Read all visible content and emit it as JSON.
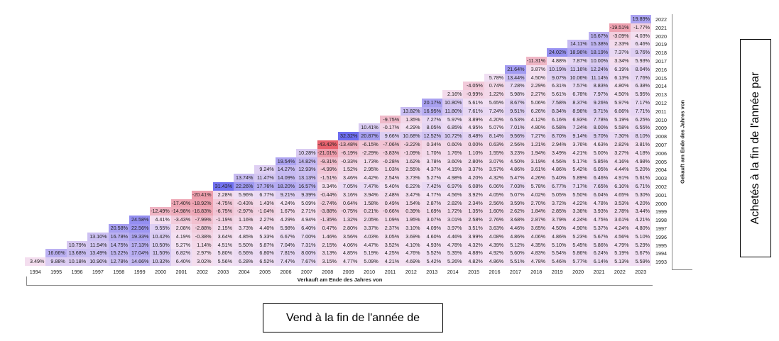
{
  "chart_data": {
    "type": "heatmap",
    "xlabel": "Verkauft am Ende des Jahres von",
    "ylabel": "Gekauft am Ende des Jahres von",
    "unit": "%",
    "columns": [
      1994,
      1995,
      1996,
      1997,
      1998,
      1999,
      2000,
      2001,
      2002,
      2003,
      2004,
      2005,
      2006,
      2007,
      2008,
      2009,
      2010,
      2011,
      2012,
      2013,
      2014,
      2015,
      2016,
      2017,
      2018,
      2019,
      2020,
      2021,
      2022,
      2023
    ],
    "color_scale": {
      "negative": "#e8626e",
      "mid": "#f4e2f3",
      "positive": "#6e6ef0"
    },
    "rows": [
      {
        "year": 2022,
        "values": [
          19.89
        ]
      },
      {
        "year": 2021,
        "values": [
          -19.51,
          -1.77
        ]
      },
      {
        "year": 2020,
        "values": [
          16.67,
          -3.09,
          4.03
        ]
      },
      {
        "year": 2019,
        "values": [
          14.11,
          15.38,
          2.33,
          6.46
        ]
      },
      {
        "year": 2018,
        "values": [
          24.02,
          18.96,
          18.19,
          7.37,
          9.76
        ]
      },
      {
        "year": 2017,
        "values": [
          -11.31,
          4.88,
          7.87,
          10.0,
          3.34,
          5.93
        ]
      },
      {
        "year": 2016,
        "values": [
          21.64,
          3.87,
          10.19,
          11.16,
          12.24,
          6.19,
          8.04
        ]
      },
      {
        "year": 2015,
        "values": [
          5.78,
          13.44,
          4.5,
          9.07,
          10.06,
          11.14,
          6.13,
          7.76
        ]
      },
      {
        "year": 2014,
        "values": [
          -4.05,
          0.74,
          7.28,
          2.29,
          6.31,
          7.57,
          8.83,
          4.8,
          6.38
        ]
      },
      {
        "year": 2013,
        "values": [
          2.16,
          -0.99,
          1.22,
          5.98,
          2.27,
          5.61,
          6.78,
          7.97,
          4.5,
          5.95
        ]
      },
      {
        "year": 2012,
        "values": [
          20.17,
          10.8,
          5.61,
          5.65,
          8.67,
          5.06,
          7.58,
          8.37,
          9.26,
          5.97,
          7.17
        ]
      },
      {
        "year": 2011,
        "values": [
          13.82,
          16.95,
          11.8,
          7.61,
          7.24,
          9.51,
          6.26,
          8.34,
          8.96,
          9.71,
          6.66,
          7.71
        ]
      },
      {
        "year": 2010,
        "values": [
          -9.75,
          1.35,
          7.27,
          5.97,
          3.89,
          4.2,
          6.53,
          4.12,
          6.16,
          6.93,
          7.78,
          5.19,
          6.25
        ]
      },
      {
        "year": 2009,
        "values": [
          10.41,
          -0.17,
          4.29,
          8.05,
          6.85,
          4.95,
          5.07,
          7.01,
          4.8,
          6.58,
          7.24,
          8.0,
          5.58,
          6.55
        ]
      },
      {
        "year": 2008,
        "values": [
          32.32,
          20.87,
          9.66,
          10.68,
          12.52,
          10.72,
          8.48,
          8.14,
          9.56,
          7.27,
          8.7,
          9.14,
          9.7,
          7.3,
          8.1
        ]
      },
      {
        "year": 2007,
        "values": [
          -43.42,
          -13.48,
          -6.15,
          -7.06,
          -3.22,
          0.34,
          0.6,
          0.0,
          0.63,
          2.56,
          1.21,
          2.94,
          3.76,
          4.63,
          2.82,
          3.81
        ]
      },
      {
        "year": 2006,
        "values": [
          10.28,
          -21.01,
          -6.19,
          -2.29,
          -3.83,
          -1.09,
          1.7,
          1.76,
          1.1,
          1.55,
          3.23,
          1.94,
          3.49,
          4.21,
          5.0,
          3.27,
          4.18
        ]
      },
      {
        "year": 2005,
        "values": [
          19.54,
          14.82,
          -9.31,
          -0.33,
          1.73,
          -0.28,
          1.62,
          3.78,
          3.6,
          2.8,
          3.07,
          4.5,
          3.19,
          4.56,
          5.17,
          5.85,
          4.16,
          4.98
        ]
      },
      {
        "year": 2004,
        "values": [
          9.24,
          14.27,
          12.93,
          -4.99,
          1.52,
          2.95,
          1.03,
          2.55,
          4.37,
          4.15,
          3.37,
          3.57,
          4.86,
          3.61,
          4.86,
          5.42,
          6.05,
          4.44,
          5.2
        ]
      },
      {
        "year": 2003,
        "values": [
          13.74,
          11.47,
          14.09,
          13.13,
          -1.51,
          3.46,
          4.42,
          2.54,
          3.73,
          5.27,
          4.98,
          4.2,
          4.32,
          5.47,
          4.26,
          5.4,
          5.89,
          6.46,
          4.91,
          5.61
        ]
      },
      {
        "year": 2002,
        "values": [
          31.43,
          22.26,
          17.76,
          18.2,
          16.57,
          3.34,
          7.05,
          7.47,
          5.4,
          6.22,
          7.42,
          6.97,
          6.08,
          6.06,
          7.03,
          5.78,
          6.77,
          7.17,
          7.65,
          6.1,
          6.71
        ]
      },
      {
        "year": 2001,
        "values": [
          -20.41,
          2.28,
          5.96,
          6.77,
          9.21,
          9.39,
          -0.44,
          3.16,
          3.94,
          2.48,
          3.47,
          4.77,
          4.56,
          3.92,
          4.05,
          5.07,
          4.02,
          5.05,
          5.5,
          6.04,
          4.65,
          5.3
        ]
      },
      {
        "year": 2000,
        "values": [
          -17.4,
          -18.92,
          -4.75,
          -0.43,
          1.43,
          4.24,
          5.09,
          -2.74,
          0.64,
          1.58,
          0.49,
          1.54,
          2.87,
          2.82,
          2.34,
          2.56,
          3.59,
          2.7,
          3.72,
          4.22,
          4.78,
          3.53,
          4.2
        ]
      },
      {
        "year": 1999,
        "values": [
          -12.49,
          -14.98,
          -16.83,
          -6.75,
          -2.97,
          -1.04,
          1.67,
          2.71,
          -3.88,
          -0.75,
          0.21,
          -0.66,
          0.39,
          1.69,
          1.72,
          1.35,
          1.6,
          2.62,
          1.84,
          2.85,
          3.36,
          3.93,
          2.78,
          3.44
        ]
      },
      {
        "year": 1998,
        "values": [
          24.58,
          4.41,
          -3.43,
          -7.99,
          -1.19,
          1.16,
          2.27,
          4.29,
          4.94,
          -1.35,
          1.32,
          2.05,
          1.09,
          1.95,
          3.07,
          3.01,
          2.58,
          2.76,
          3.68,
          2.87,
          3.79,
          4.24,
          4.75,
          3.61,
          4.21
        ]
      },
      {
        "year": 1997,
        "values": [
          20.58,
          22.56,
          9.55,
          2.08,
          -2.88,
          2.15,
          3.73,
          4.4,
          5.98,
          6.4,
          0.47,
          2.8,
          3.37,
          2.37,
          3.1,
          4.09,
          3.97,
          3.51,
          3.63,
          4.46,
          3.65,
          4.5,
          4.9,
          5.37,
          4.24,
          4.8
        ]
      },
      {
        "year": 1996,
        "values": [
          13.1,
          16.78,
          19.33,
          10.42,
          4.19,
          -0.38,
          3.64,
          4.85,
          5.33,
          6.67,
          7.0,
          1.46,
          3.56,
          4.03,
          3.05,
          3.69,
          4.6,
          4.46,
          3.99,
          4.08,
          4.86,
          4.06,
          4.86,
          5.23,
          5.67,
          4.56,
          5.1
        ]
      },
      {
        "year": 1995,
        "values": [
          10.79,
          11.94,
          14.75,
          17.13,
          10.5,
          5.27,
          1.14,
          4.51,
          5.5,
          5.87,
          7.04,
          7.31,
          2.15,
          4.06,
          4.47,
          3.52,
          4.1,
          4.93,
          4.78,
          4.32,
          4.39,
          5.12,
          4.35,
          5.1,
          5.45,
          5.86,
          4.79,
          5.29
        ]
      },
      {
        "year": 1994,
        "values": [
          16.66,
          13.68,
          13.49,
          15.22,
          17.04,
          11.5,
          6.82,
          2.97,
          5.8,
          6.56,
          6.8,
          7.81,
          8.0,
          3.13,
          4.85,
          5.19,
          4.25,
          4.76,
          5.52,
          5.35,
          4.88,
          4.92,
          5.6,
          4.83,
          5.54,
          5.86,
          6.24,
          5.19,
          5.67
        ]
      },
      {
        "year": 1993,
        "values": [
          3.49,
          9.88,
          10.18,
          10.9,
          12.78,
          14.66,
          10.32,
          6.4,
          3.02,
          5.56,
          6.28,
          6.52,
          7.47,
          7.67,
          3.15,
          4.77,
          5.09,
          4.21,
          4.69,
          5.42,
          5.26,
          4.82,
          4.86,
          5.51,
          4.78,
          5.46,
          5.77,
          6.14,
          5.13,
          5.59
        ]
      }
    ]
  },
  "annotations": {
    "right": "Achetés à la fin de l'année par",
    "bottom": "Vend à la fin de l'année de"
  }
}
